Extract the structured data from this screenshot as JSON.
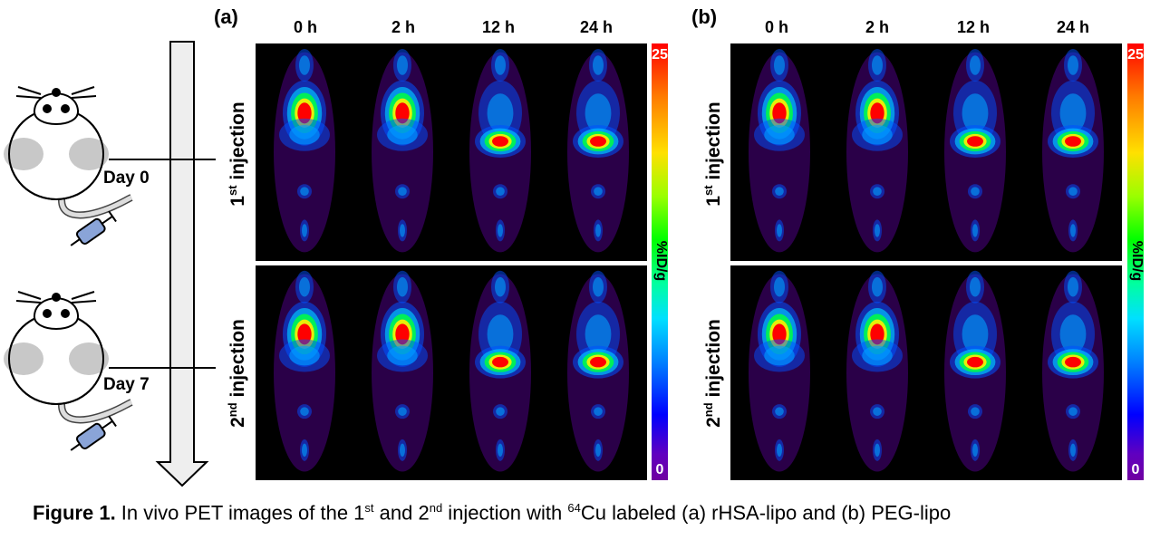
{
  "panels": [
    {
      "label": "(a)",
      "time_labels": [
        "0 h",
        "2 h",
        "12 h",
        "24 h"
      ]
    },
    {
      "label": "(b)",
      "time_labels": [
        "0 h",
        "2 h",
        "12 h",
        "24 h"
      ]
    }
  ],
  "rows": [
    {
      "num": "1",
      "sup": "st",
      "rest": " injection"
    },
    {
      "num": "2",
      "sup": "nd",
      "rest": " injection"
    }
  ],
  "colorbar": {
    "max": "25",
    "min": "0",
    "unit": "%ID/g"
  },
  "timeline": {
    "day0": "Day 0",
    "day7": "Day 7"
  },
  "caption": {
    "bold": "Figure 1.",
    "t1": " In vivo PET images of the 1",
    "s1": "st",
    "t2": "  and 2",
    "s2": "nd",
    "t3": " injection with ",
    "s3": "64",
    "t4": "Cu labeled (a) rHSA-lipo and (b) PEG-lipo"
  },
  "colors": {
    "hot": "#ff0000",
    "warm": "#ffee00",
    "mid": "#00ff40",
    "cool": "#0050ff",
    "bg": "#2a0048"
  }
}
